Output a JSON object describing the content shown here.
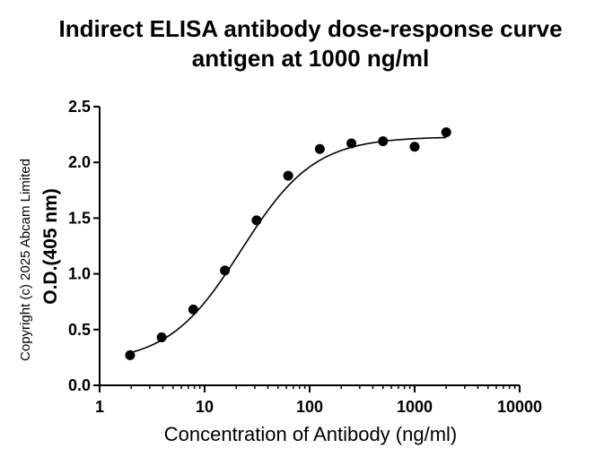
{
  "chart_data": {
    "type": "scatter",
    "title": "Indirect ELISA antibody dose-response curve",
    "subtitle": "antigen at 1000 ng/ml",
    "xlabel": "Concentration of Antibody (ng/ml)",
    "ylabel": "O.D.(405 nm)",
    "xscale": "log",
    "xlim": [
      1,
      10000
    ],
    "ylim": [
      0.0,
      2.5
    ],
    "x_ticks": [
      1,
      10,
      100,
      1000,
      10000
    ],
    "x_tick_labels": [
      "1",
      "10",
      "100",
      "1000",
      "10000"
    ],
    "y_ticks": [
      0.0,
      0.5,
      1.0,
      1.5,
      2.0,
      2.5
    ],
    "y_tick_labels": [
      "0.0",
      "0.5",
      "1.0",
      "1.5",
      "2.0",
      "2.5"
    ],
    "grid": false,
    "fit_curve": "sigmoidal",
    "series": [
      {
        "x": [
          1.95,
          3.9,
          7.8,
          15.6,
          31.25,
          62.5,
          125,
          250,
          500,
          1000,
          2000
        ],
        "y": [
          0.27,
          0.43,
          0.68,
          1.03,
          1.48,
          1.88,
          2.12,
          2.17,
          2.19,
          2.14,
          2.27
        ]
      }
    ],
    "copyright": "Copyright (c) 2025 Abcam Limited",
    "colors": {
      "marker": "#000000",
      "line": "#000000",
      "background": "#ffffff"
    }
  }
}
